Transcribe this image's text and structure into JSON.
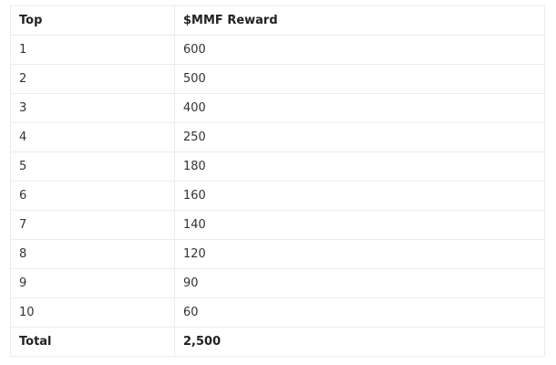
{
  "table": {
    "headers": [
      "Top",
      "$MMF Reward"
    ],
    "rows": [
      [
        "1",
        "600"
      ],
      [
        "2",
        "500"
      ],
      [
        "3",
        "400"
      ],
      [
        "4",
        "250"
      ],
      [
        "5",
        "180"
      ],
      [
        "6",
        "160"
      ],
      [
        "7",
        "140"
      ],
      [
        "8",
        "120"
      ],
      [
        "9",
        "90"
      ],
      [
        "10",
        "60"
      ]
    ],
    "total": [
      "Total",
      "2,500"
    ]
  }
}
